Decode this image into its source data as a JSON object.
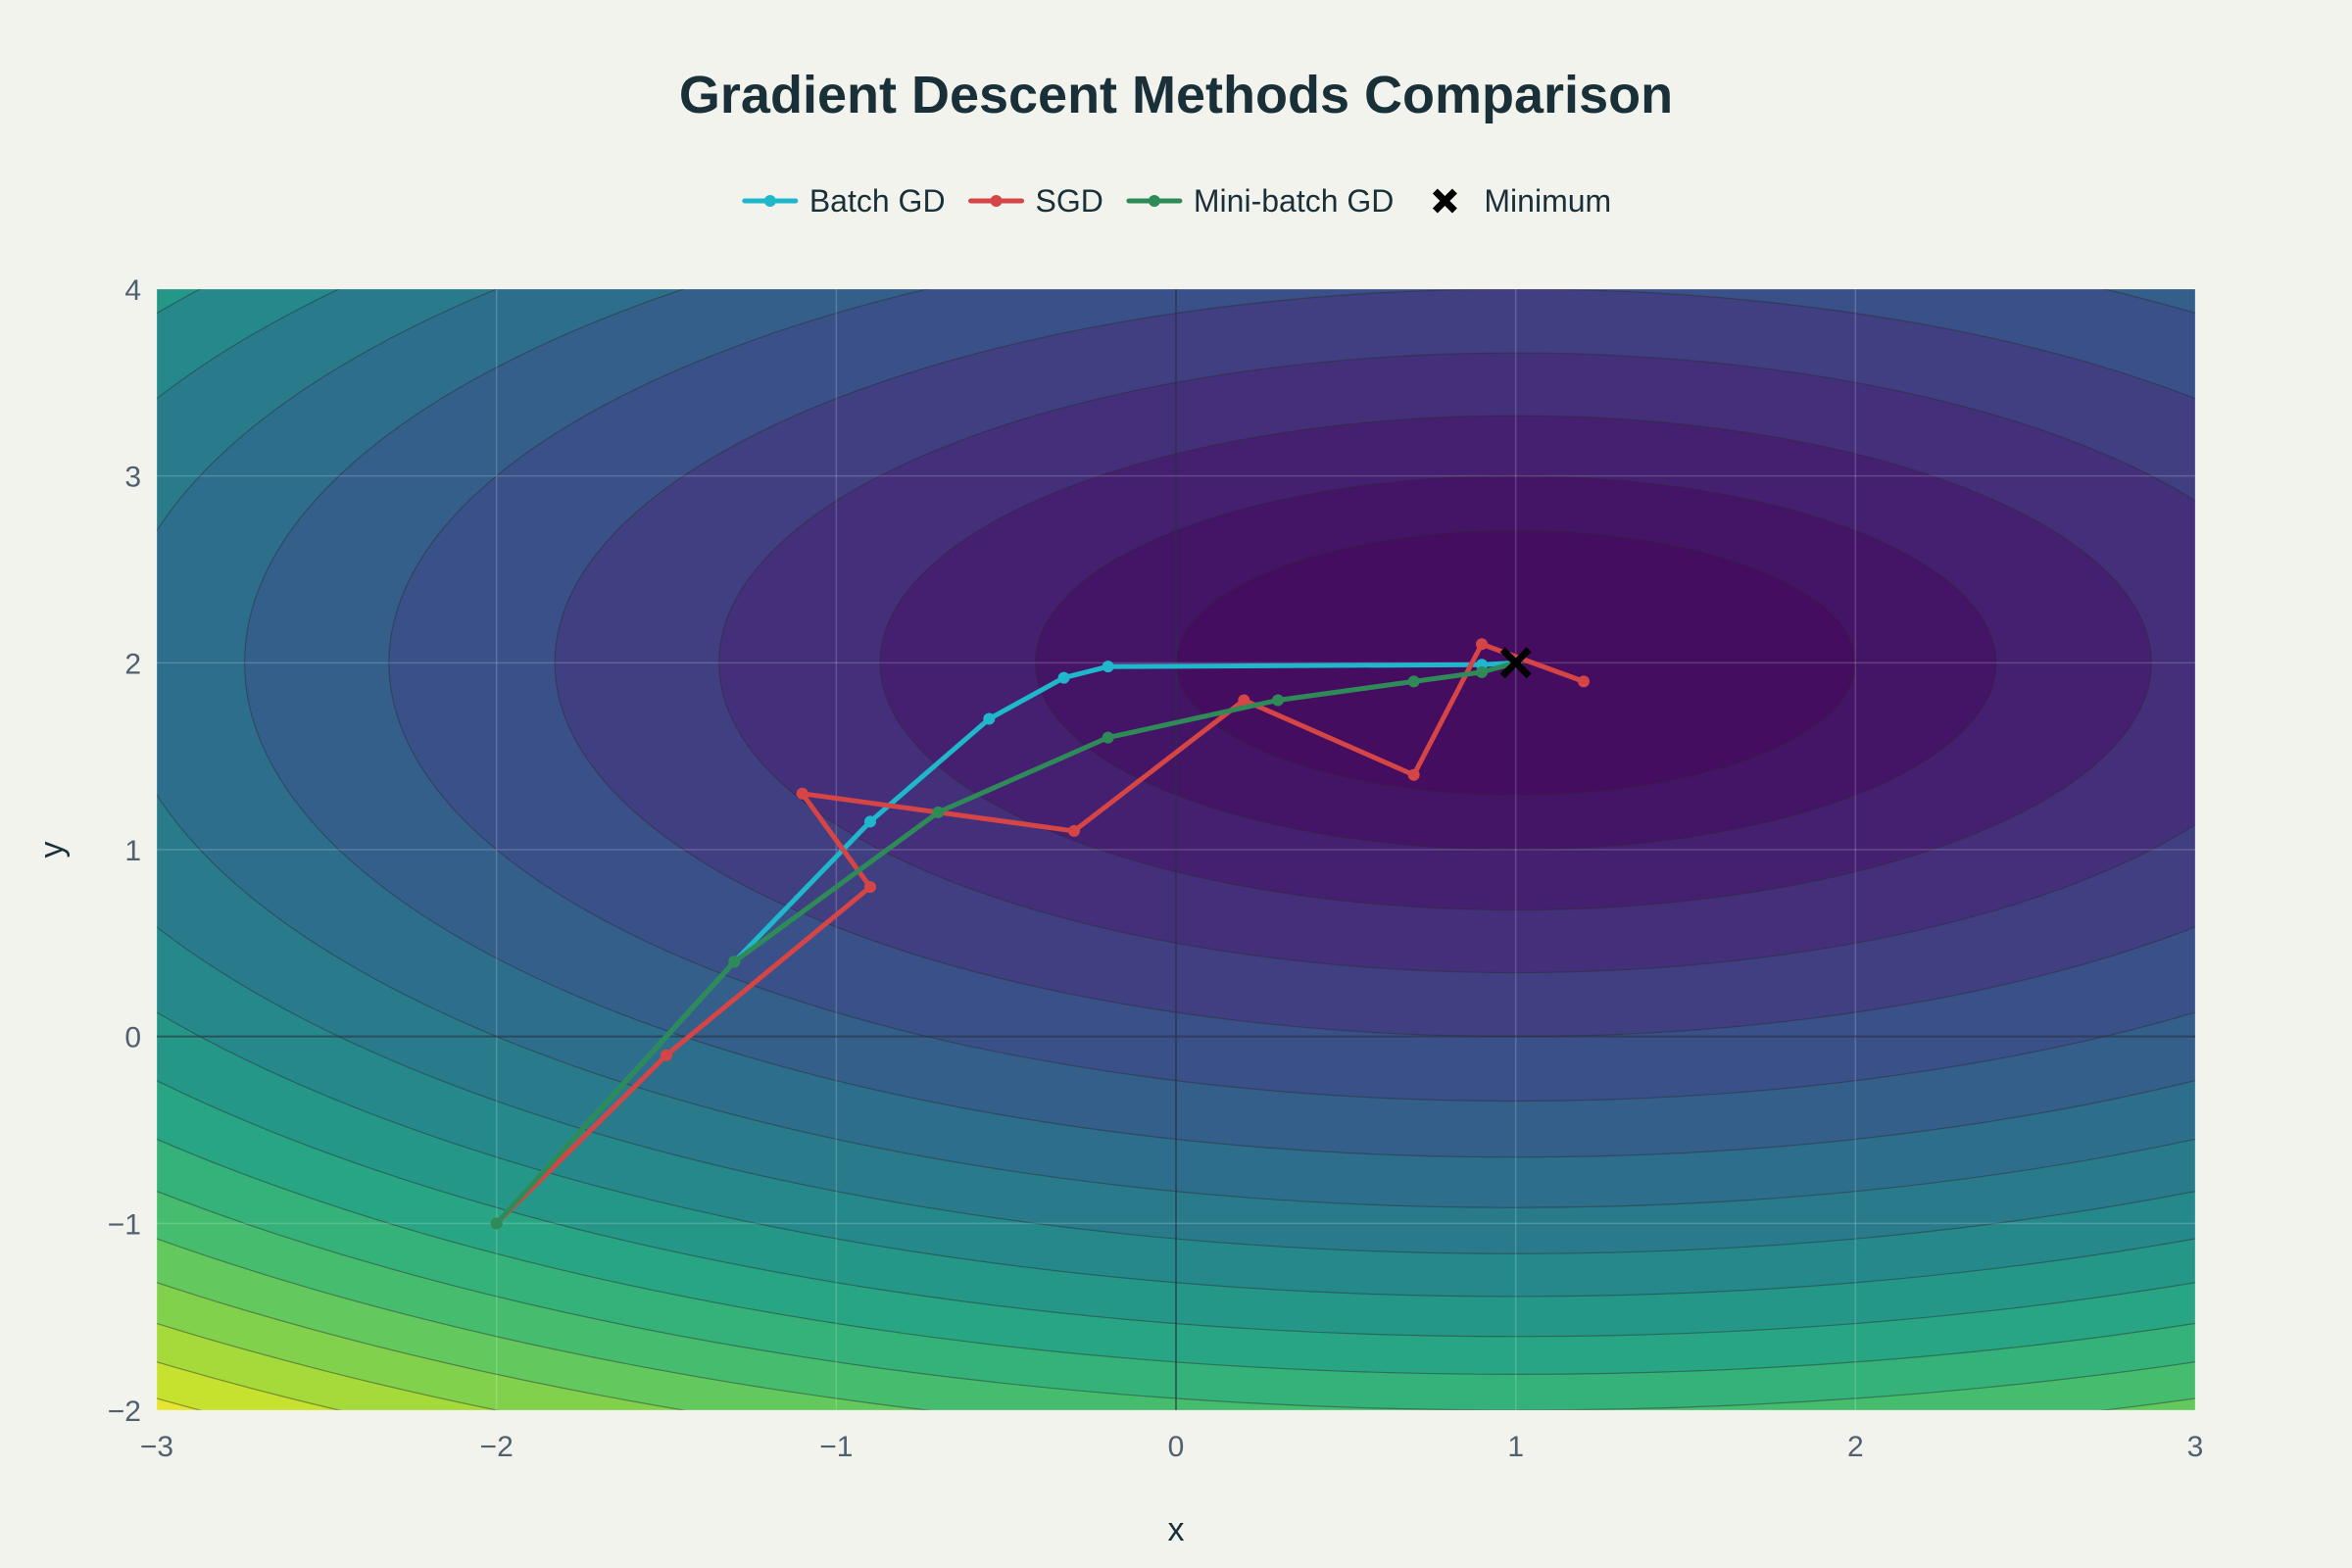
{
  "chart_data": {
    "type": "line",
    "title": "Gradient Descent Methods Comparison",
    "xlabel": "x",
    "ylabel": "y",
    "xlim": [
      -3,
      3
    ],
    "ylim": [
      -2,
      4
    ],
    "x_ticks": [
      -3,
      -2,
      -1,
      0,
      1,
      2,
      3
    ],
    "y_ticks": [
      -2,
      -1,
      0,
      1,
      2,
      3,
      4
    ],
    "x_tick_labels": [
      "−3",
      "−2",
      "−1",
      "0",
      "1",
      "2",
      "3"
    ],
    "y_tick_labels": [
      "−2",
      "−1",
      "0",
      "1",
      "2",
      "3",
      "4"
    ],
    "grid": true,
    "legend_position": "top-center",
    "contour": {
      "function": "(x-1)^2 + 2*(y-2)^2",
      "center": [
        1,
        2
      ],
      "levels": [
        1,
        2,
        3.5,
        5.5,
        8,
        11,
        14,
        17,
        20,
        23,
        26,
        29,
        32,
        35,
        38,
        41,
        44,
        47,
        50,
        53
      ],
      "colorscale": "viridis"
    },
    "series": [
      {
        "name": "Batch GD",
        "color": "#1fb7cc",
        "x": [
          -2.0,
          -1.3,
          -0.9,
          -0.55,
          -0.33,
          -0.2,
          0.9,
          1.0
        ],
        "y": [
          -1.0,
          0.4,
          1.15,
          1.7,
          1.92,
          1.98,
          1.99,
          2.0
        ]
      },
      {
        "name": "SGD",
        "color": "#d64545",
        "x": [
          -2.0,
          -1.5,
          -0.9,
          -1.1,
          -0.3,
          0.2,
          0.7,
          0.9,
          1.2
        ],
        "y": [
          -1.0,
          -0.1,
          0.8,
          1.3,
          1.1,
          1.8,
          1.4,
          2.1,
          1.9
        ]
      },
      {
        "name": "Mini-batch GD",
        "color": "#2e8b57",
        "x": [
          -2.0,
          -1.3,
          -0.7,
          -0.2,
          0.3,
          0.7,
          0.9,
          1.0
        ],
        "y": [
          -1.0,
          0.4,
          1.2,
          1.6,
          1.8,
          1.9,
          1.95,
          2.0
        ]
      }
    ],
    "markers": [
      {
        "name": "Minimum",
        "x": 1,
        "y": 2,
        "symbol": "x",
        "color": "#000000"
      }
    ]
  }
}
